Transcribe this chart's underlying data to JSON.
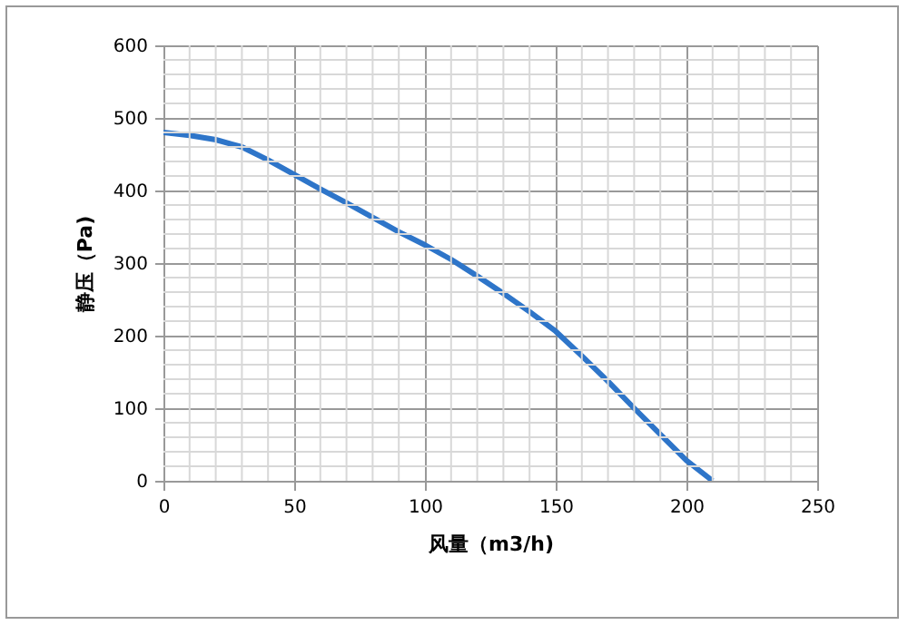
{
  "chart_data": {
    "type": "line",
    "xlabel": "风量（m3/h)",
    "ylabel": "静压（Pa)",
    "x": [
      0,
      10,
      20,
      30,
      40,
      50,
      60,
      70,
      80,
      90,
      100,
      110,
      120,
      130,
      140,
      150,
      160,
      170,
      180,
      190,
      200,
      210
    ],
    "series": [
      {
        "color": "#2e75c9",
        "values": [
          480,
          476,
          470,
          460,
          442,
          422,
          402,
          383,
          363,
          343,
          325,
          305,
          282,
          258,
          233,
          206,
          172,
          137,
          100,
          64,
          28,
          0
        ]
      }
    ],
    "xlim": [
      0,
      250
    ],
    "xticks": [
      0,
      50,
      100,
      150,
      200,
      250
    ],
    "ylim": [
      0,
      600
    ],
    "yticks": [
      0,
      100,
      200,
      300,
      400,
      500,
      600
    ],
    "grid": true,
    "marker": "none",
    "line_style": "solid"
  }
}
